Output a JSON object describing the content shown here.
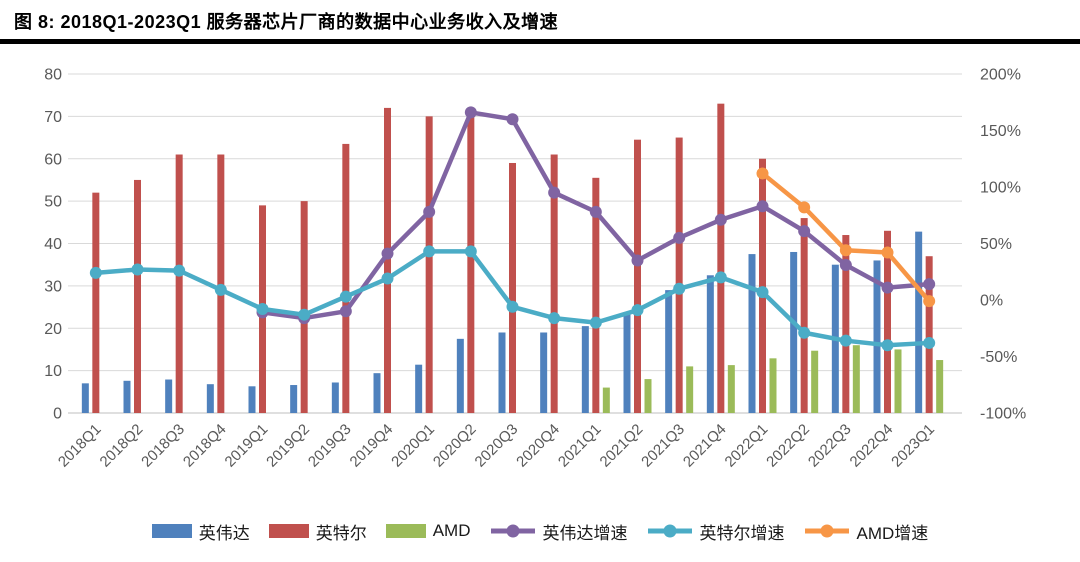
{
  "title": "图 8:  2018Q1-2023Q1 服务器芯片厂商的数据中心业务收入及增速",
  "chart_data": {
    "type": "bar+line combo, dual axis",
    "categories": [
      "2018Q1",
      "2018Q2",
      "2018Q3",
      "2018Q4",
      "2019Q1",
      "2019Q2",
      "2019Q3",
      "2019Q4",
      "2020Q1",
      "2020Q2",
      "2020Q3",
      "2020Q4",
      "2021Q1",
      "2021Q2",
      "2021Q3",
      "2021Q4",
      "2022Q1",
      "2022Q2",
      "2022Q3",
      "2022Q4",
      "2023Q1"
    ],
    "bar_series": [
      {
        "key": "nvidia",
        "label": "英伟达",
        "color": "#4F81BD",
        "axis": "left",
        "values": [
          7.0,
          7.6,
          7.9,
          6.8,
          6.3,
          6.6,
          7.2,
          9.4,
          11.4,
          17.5,
          19.0,
          19.0,
          20.5,
          23.5,
          29.0,
          32.5,
          37.5,
          38.0,
          35.0,
          36.0,
          42.8
        ]
      },
      {
        "key": "intel",
        "label": "英特尔",
        "color": "#C0504D",
        "axis": "left",
        "values": [
          52,
          55,
          61,
          61,
          49,
          50,
          63.5,
          72,
          70,
          71,
          59,
          61,
          55.5,
          64.5,
          65,
          73,
          60,
          46,
          42,
          43,
          37
        ]
      },
      {
        "key": "amd",
        "label": "AMD",
        "color": "#9BBB59",
        "axis": "left",
        "values": [
          null,
          null,
          null,
          null,
          null,
          null,
          null,
          null,
          null,
          null,
          null,
          null,
          6,
          8,
          11,
          11.3,
          12.9,
          14.7,
          16,
          15,
          12.5
        ]
      }
    ],
    "line_series": [
      {
        "key": "nvidia-growth",
        "label": "英伟达增速",
        "color": "#8064A2",
        "axis": "right",
        "values_pct": [
          null,
          null,
          null,
          null,
          -11,
          -16,
          -10,
          41,
          78,
          166,
          160,
          95,
          78,
          35,
          55,
          71,
          83,
          61,
          31,
          11,
          14
        ]
      },
      {
        "key": "intel-growth",
        "label": "英特尔增速",
        "color": "#4BACC6",
        "axis": "right",
        "values_pct": [
          24,
          27,
          26,
          9,
          -8,
          -13,
          3,
          19,
          43,
          43,
          -6,
          -16,
          -20,
          -9,
          10,
          20,
          7,
          -29,
          -36,
          -40,
          -38
        ]
      },
      {
        "key": "amd-growth",
        "label": "AMD增速",
        "color": "#F79646",
        "axis": "right",
        "values_pct": [
          null,
          null,
          null,
          null,
          null,
          null,
          null,
          null,
          null,
          null,
          null,
          null,
          null,
          null,
          null,
          null,
          112,
          82,
          44,
          42,
          -1
        ]
      }
    ],
    "left_axis": {
      "min": 0,
      "max": 80,
      "step": 10,
      "tick_labels": [
        "0",
        "10",
        "20",
        "30",
        "40",
        "50",
        "60",
        "70",
        "80"
      ]
    },
    "right_axis": {
      "min": -100,
      "max": 200,
      "step": 50,
      "tick_labels_top_to_bottom": [
        "200%",
        "150%",
        "100%",
        "50%",
        "0%",
        "-50%",
        "-100%"
      ]
    },
    "grid": true,
    "legend_position": "bottom"
  },
  "styles": {
    "background": "#FFFFFF",
    "title_color": "#000000",
    "title_rule_color": "#000000",
    "grid_color": "#D9D9D9",
    "axis_line_color": "#BFBFBF",
    "axis_label_color": "#595959",
    "legend_text_color": "#1A1A1A"
  }
}
